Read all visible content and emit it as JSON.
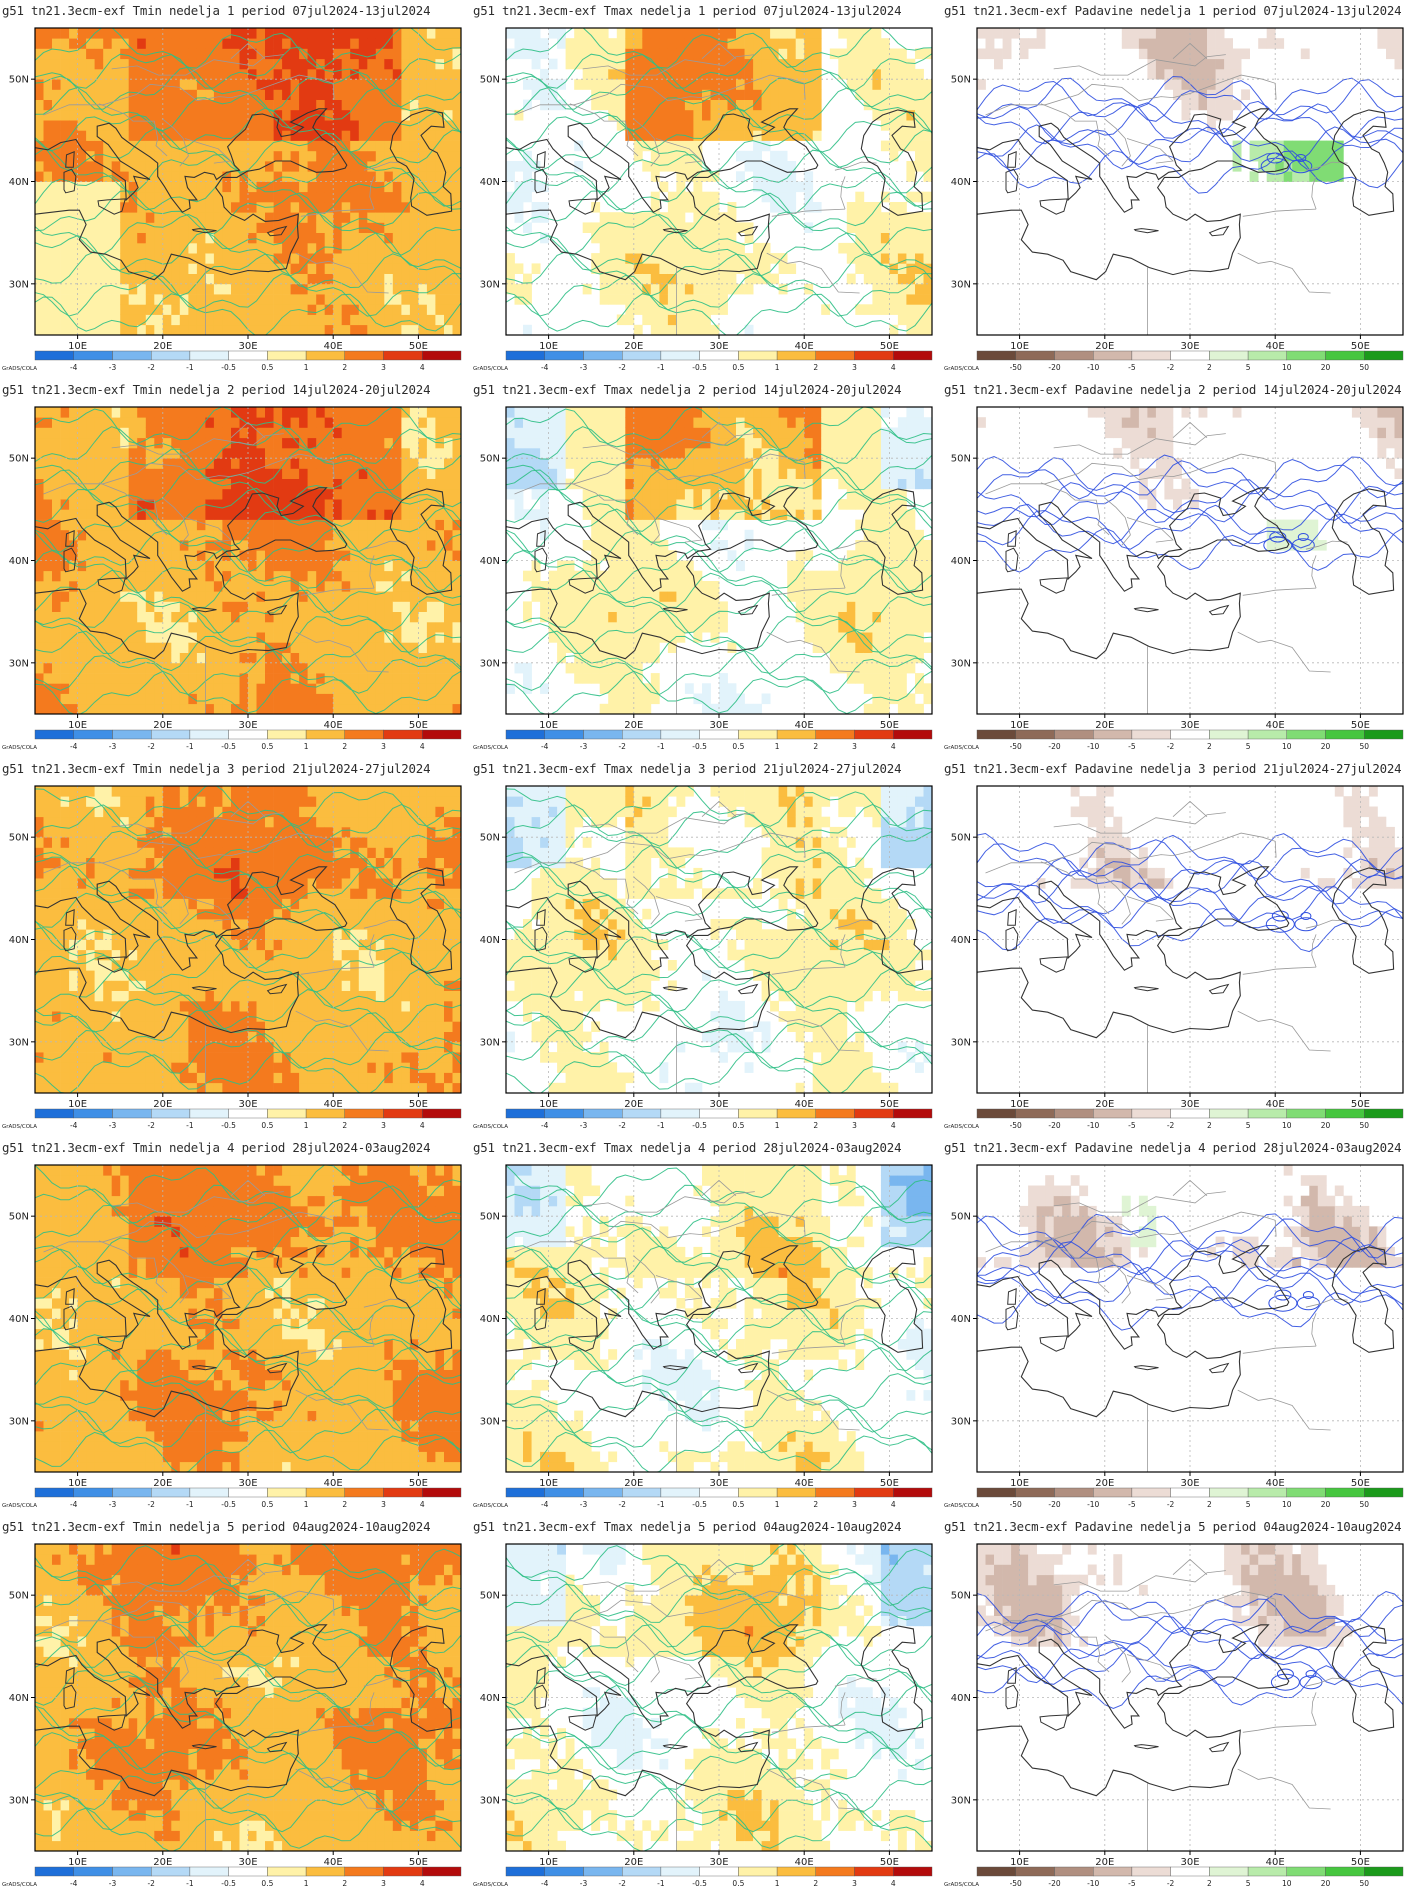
{
  "figure": {
    "model_prefix": "g51",
    "run": "tn21.3ecm-exf",
    "variables": [
      "Tmin",
      "Tmax",
      "Padavine"
    ],
    "week_word": "nedelja",
    "period_word": "period",
    "weeks": [
      {
        "n": "1",
        "period": "07jul2024-13jul2024"
      },
      {
        "n": "2",
        "period": "14jul2024-20jul2024"
      },
      {
        "n": "3",
        "period": "21jul2024-27jul2024"
      },
      {
        "n": "4",
        "period": "28jul2024-03aug2024"
      },
      {
        "n": "5",
        "period": "04aug2024-10aug2024"
      }
    ],
    "titles": [
      [
        "g51 tn21.3ecm-exf Tmin nedelja 1 period 07jul2024-13jul2024",
        "g51 tn21.3ecm-exf Tmax nedelja 1 period 07jul2024-13jul2024",
        "g51 tn21.3ecm-exf Padavine nedelja 1 period 07jul2024-13jul2024"
      ],
      [
        "g51 tn21.3ecm-exf Tmin nedelja 2 period 14jul2024-20jul2024",
        "g51 tn21.3ecm-exf Tmax nedelja 2 period 14jul2024-20jul2024",
        "g51 tn21.3ecm-exf Padavine nedelja 2 period 14jul2024-20jul2024"
      ],
      [
        "g51 tn21.3ecm-exf Tmin nedelja 3 period 21jul2024-27jul2024",
        "g51 tn21.3ecm-exf Tmax nedelja 3 period 21jul2024-27jul2024",
        "g51 tn21.3ecm-exf Padavine nedelja 3 period 21jul2024-27jul2024"
      ],
      [
        "g51 tn21.3ecm-exf Tmin nedelja 4 period 28jul2024-03aug2024",
        "g51 tn21.3ecm-exf Tmax nedelja 4 period 28jul2024-03aug2024",
        "g51 tn21.3ecm-exf Padavine nedelja 4 period 28jul2024-03aug2024"
      ],
      [
        "g51 tn21.3ecm-exf Tmin nedelja 5 period 04aug2024-10aug2024",
        "g51 tn21.3ecm-exf Tmax nedelja 5 period 04aug2024-10aug2024",
        "g51 tn21.3ecm-exf Padavine nedelja 5 period 04aug2024-10aug2024"
      ]
    ],
    "lon_labels": [
      "10E",
      "20E",
      "30E",
      "40E",
      "50E"
    ],
    "lat_labels": [
      "50N",
      "40N",
      "30N"
    ],
    "credit": "GrADS/COLA",
    "temp_scale": {
      "labels": [
        "-4",
        "-3",
        "-2",
        "-1",
        "-0.5",
        "0.5",
        "1",
        "2",
        "3",
        "4"
      ],
      "colors": [
        "#1e6fd9",
        "#3f8fe6",
        "#79b6ef",
        "#b4d9f6",
        "#e2f3fb",
        "#ffffff",
        "#fff2a8",
        "#fbbd3f",
        "#f47a1e",
        "#e23a12",
        "#b30b0b"
      ]
    },
    "precip_scale": {
      "labels": [
        "-50",
        "-20",
        "-10",
        "-5",
        "-2",
        "2",
        "5",
        "10",
        "20",
        "50"
      ],
      "colors": [
        "#6b4a3a",
        "#8e6a58",
        "#b08f80",
        "#d2b8ac",
        "#ecdcd5",
        "#ffffff",
        "#dff4d4",
        "#b8ebaa",
        "#80dc74",
        "#46c63f",
        "#1b9a1b"
      ]
    },
    "colors": {
      "temp_contour": "#2fbf86",
      "temp_label_box": "#7fe0d8",
      "precip_contour": "#3050e0",
      "border": "#9a9a9a",
      "coast": "#333333",
      "grid": "#b8b8b8"
    }
  }
}
